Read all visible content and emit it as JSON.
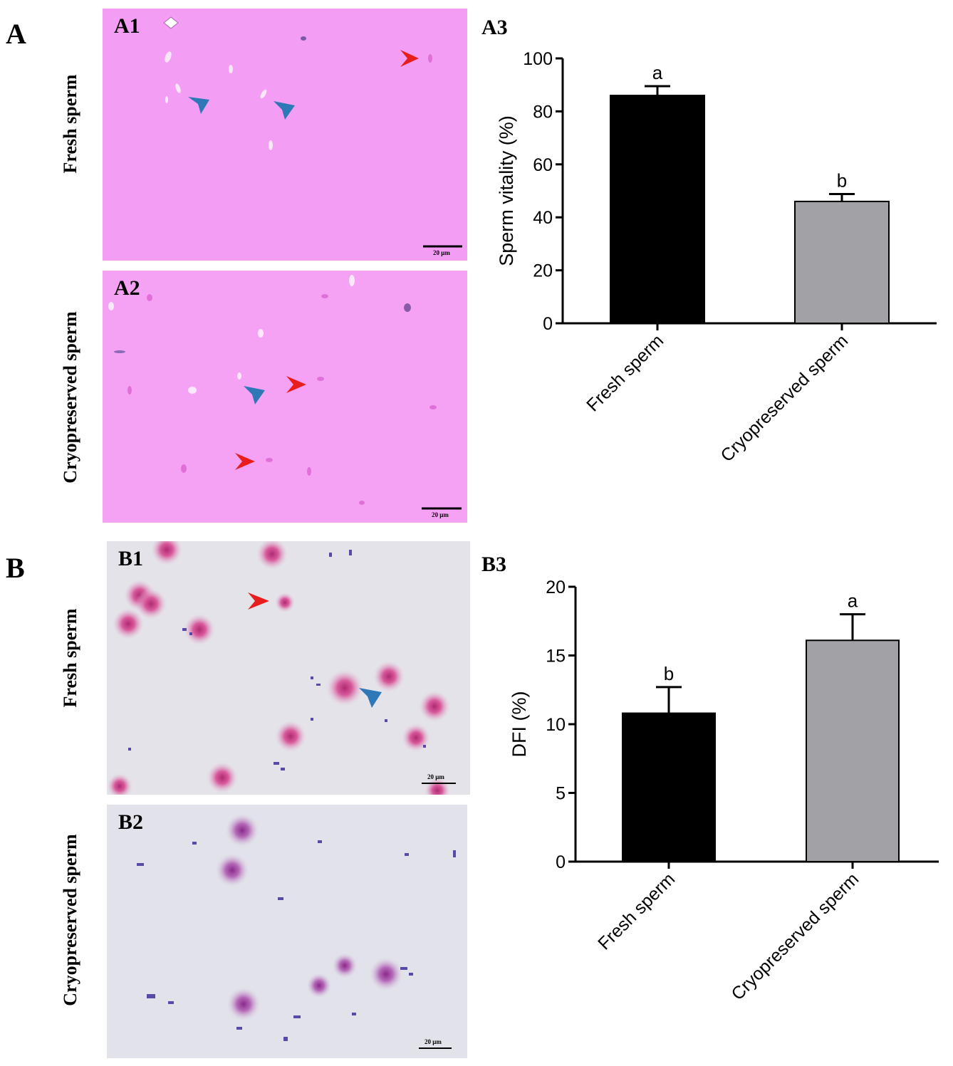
{
  "panel_a": {
    "letter": "A",
    "row_labels": [
      "Fresh sperm",
      "Cryopreserved sperm"
    ],
    "images": [
      {
        "label": "A1",
        "scale_bar": "20 μm",
        "bg": "#f49df4"
      },
      {
        "label": "A2",
        "scale_bar": "20 μm",
        "bg": "#f6a2f4"
      }
    ],
    "chart_label": "A3"
  },
  "panel_b": {
    "letter": "B",
    "row_labels": [
      "Fresh sperm",
      "Cryopreserved sperm"
    ],
    "images": [
      {
        "label": "B1",
        "scale_bar": "20 μm",
        "bg": "#e4e3e9"
      },
      {
        "label": "B2",
        "scale_bar": "20 μm",
        "bg": "#e2e2ea"
      }
    ],
    "chart_label": "B3"
  },
  "colors": {
    "fresh_bar": "#000000",
    "cryo_bar": "#a2a1a6",
    "arrow_red": "#e81e1e",
    "arrow_blue": "#2e78b8"
  },
  "chart_data": [
    {
      "type": "bar",
      "categories": [
        "Fresh sperm",
        "Cryopreserved sperm"
      ],
      "values": [
        86,
        46
      ],
      "errors": [
        3.5,
        2.8
      ],
      "significance": [
        "a",
        "b"
      ],
      "ylabel": "Sperm vitality (%)",
      "ylim": [
        0,
        100
      ],
      "yticks": [
        0,
        20,
        40,
        60,
        80,
        100
      ]
    },
    {
      "type": "bar",
      "categories": [
        "Fresh sperm",
        "Cryopreserved sperm"
      ],
      "values": [
        10.8,
        16.1
      ],
      "errors": [
        1.9,
        1.9
      ],
      "significance": [
        "b",
        "a"
      ],
      "ylabel": "DFI (%)",
      "ylim": [
        0,
        20
      ],
      "yticks": [
        0,
        5,
        10,
        15,
        20
      ]
    }
  ]
}
